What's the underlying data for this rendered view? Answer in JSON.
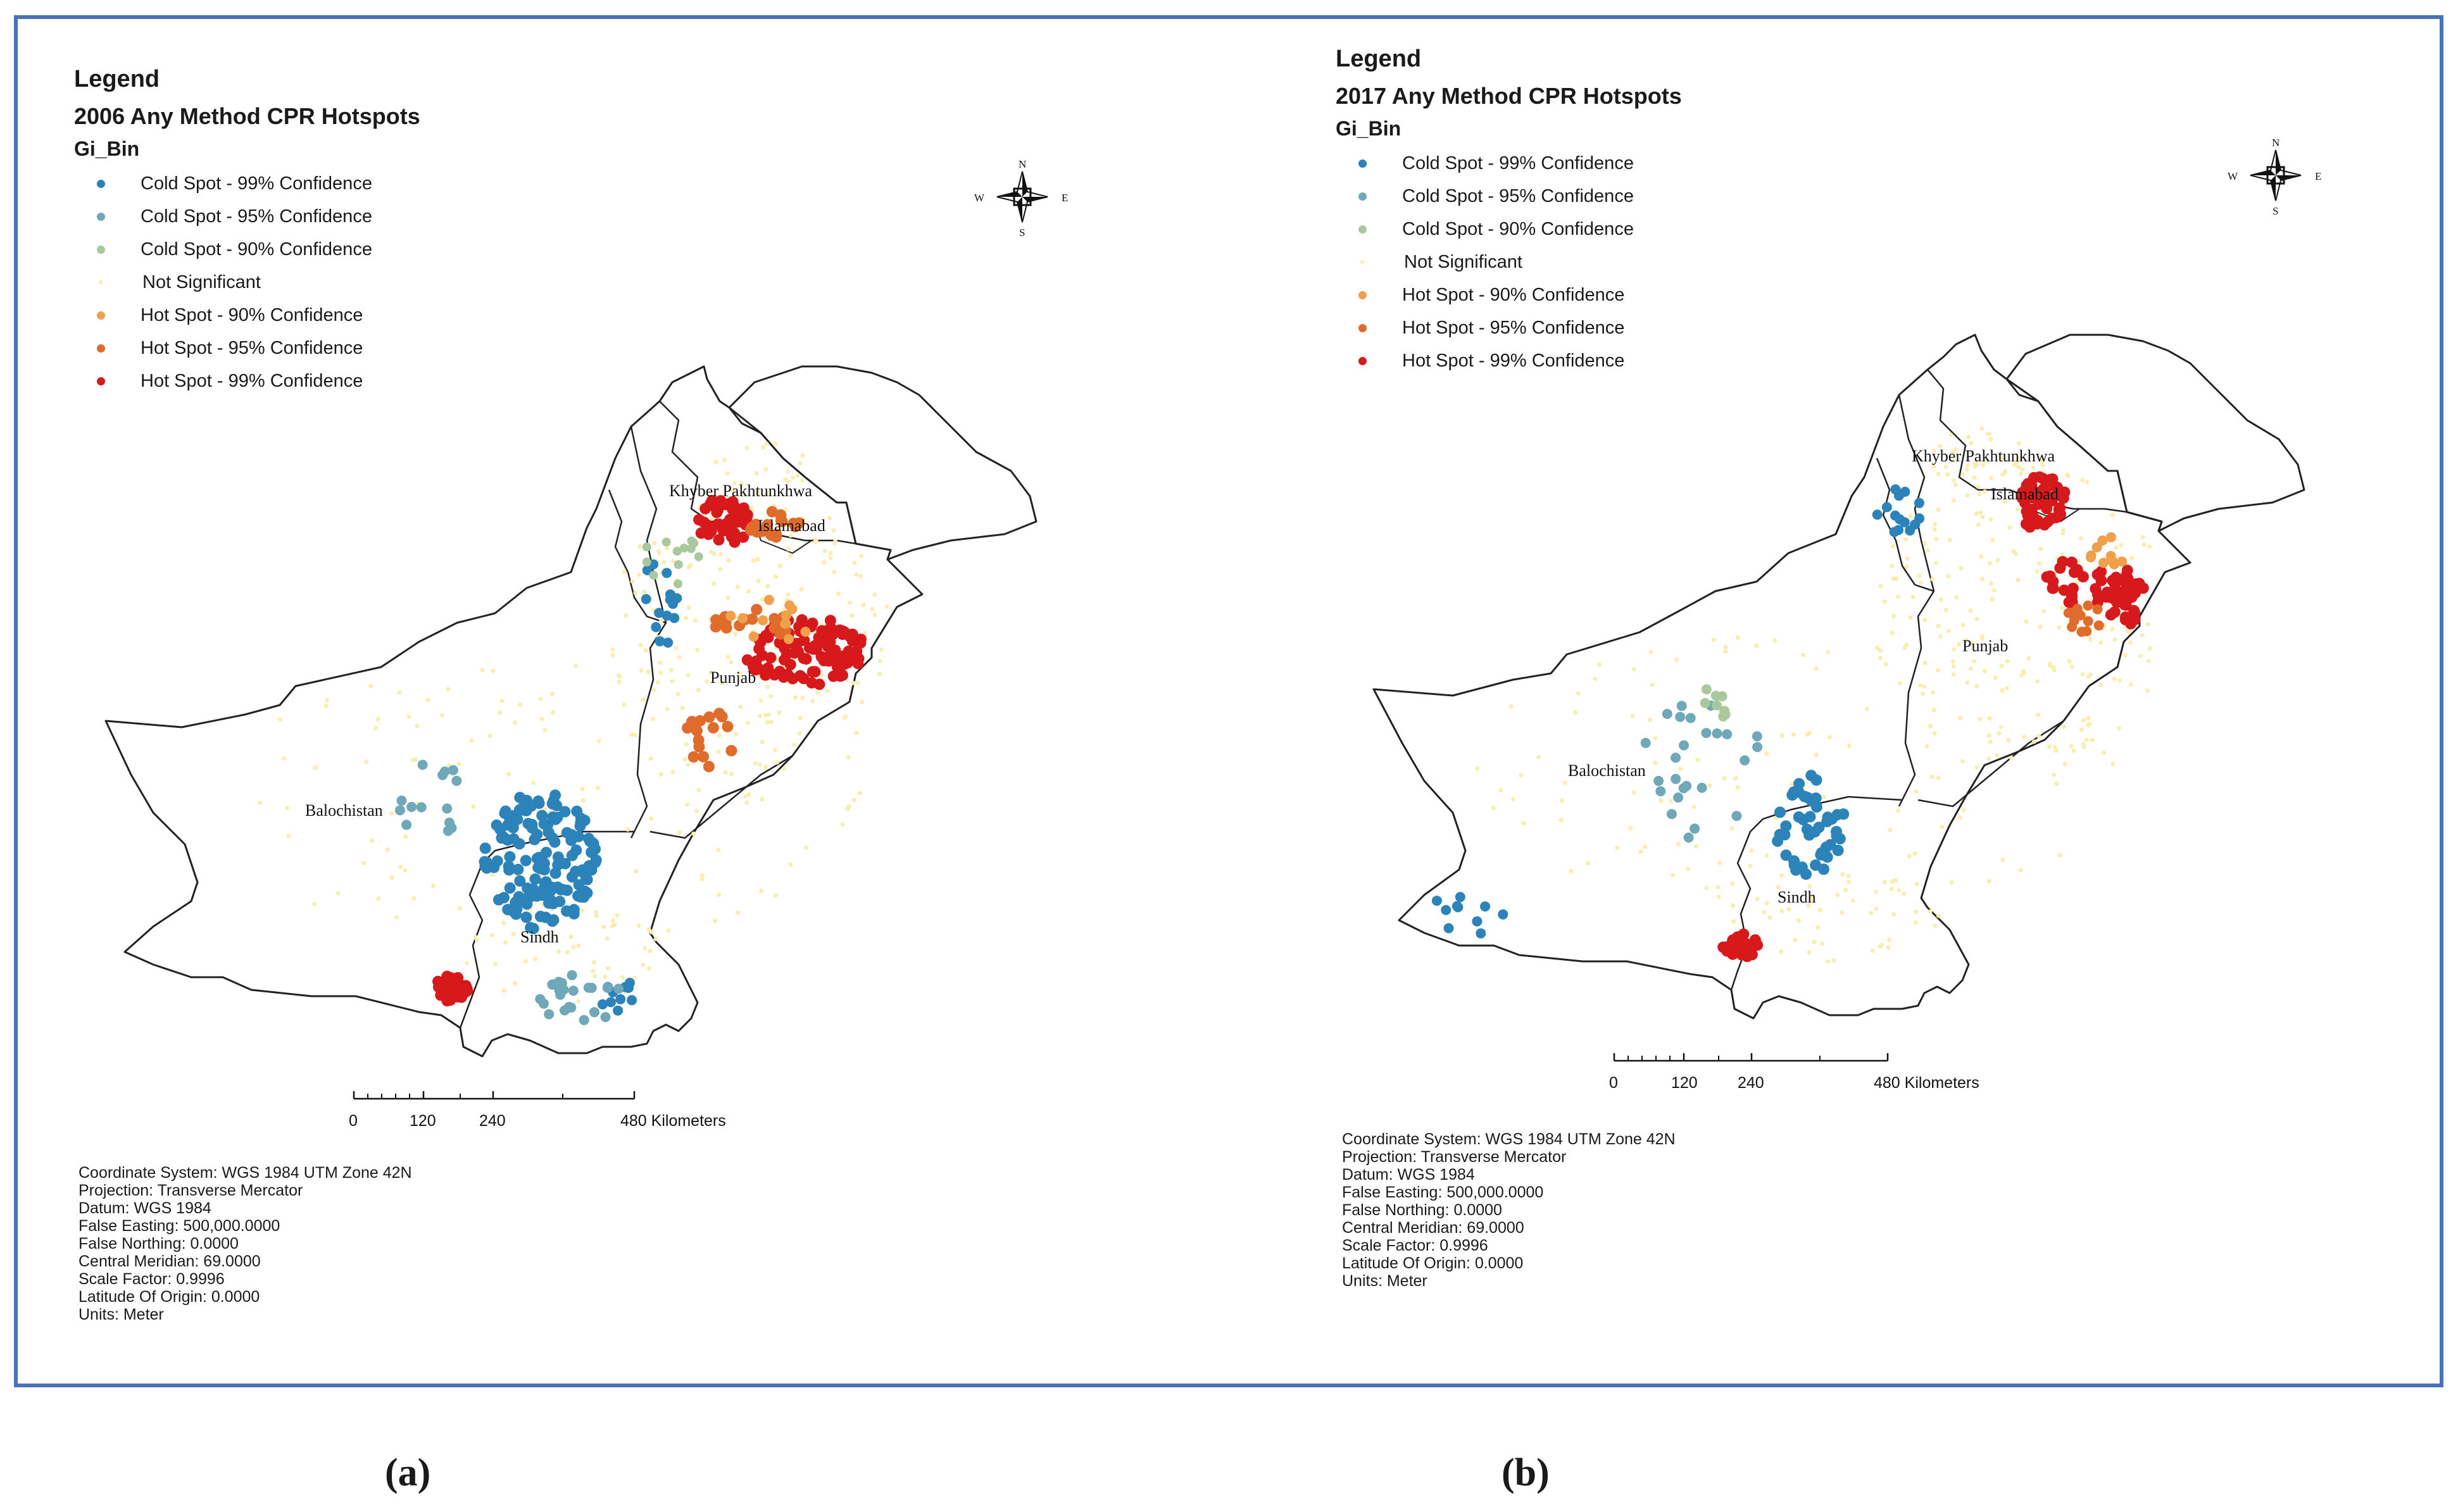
{
  "panels": [
    {
      "legend": {
        "title": "Legend",
        "subtitle": "2006 Any Method CPR Hotspots",
        "field": "Gi_Bin",
        "items": [
          {
            "label": "Cold Spot - 99% Confidence",
            "color": "#2b83ba"
          },
          {
            "label": "Cold Spot - 95% Confidence",
            "color": "#6fa8b8"
          },
          {
            "label": "Cold Spot - 90% Confidence",
            "color": "#a9c99c"
          },
          {
            "label": "Not Significant",
            "color": "#f7eeb0"
          },
          {
            "label": "Hot Spot - 90% Confidence",
            "color": "#f0a04b"
          },
          {
            "label": "Hot Spot - 95% Confidence",
            "color": "#e06c2c"
          },
          {
            "label": "Hot Spot - 99% Confidence",
            "color": "#d7191c"
          }
        ]
      },
      "compass": {
        "n": "N",
        "s": "S",
        "e": "E",
        "w": "W"
      },
      "region_labels": {
        "kp": "Khyber Pakhtunkhwa",
        "islamabad": "Islamabad",
        "punjab": "Punjab",
        "balochistan": "Balochistan",
        "sindh": "Sindh"
      },
      "scale_bar": {
        "ticks": [
          "0",
          "120",
          "240",
          "480 Kilometers"
        ]
      },
      "coordinate_info": [
        "Coordinate System: WGS 1984 UTM Zone 42N",
        "Projection: Transverse Mercator",
        "Datum: WGS 1984",
        "False Easting: 500,000.0000",
        "False Northing: 0.0000",
        "Central Meridian: 69.0000",
        "Scale Factor: 0.9996",
        "Latitude Of Origin: 0.0000",
        "Units: Meter"
      ],
      "caption": "(a)"
    },
    {
      "legend": {
        "title": "Legend",
        "subtitle": "2017 Any Method CPR Hotspots",
        "field": "Gi_Bin",
        "items": [
          {
            "label": "Cold Spot - 99% Confidence",
            "color": "#2b83ba"
          },
          {
            "label": "Cold Spot - 95% Confidence",
            "color": "#6fa8b8"
          },
          {
            "label": "Cold Spot - 90% Confidence",
            "color": "#a9c99c"
          },
          {
            "label": "Not Significant",
            "color": "#f7eeb0"
          },
          {
            "label": "Hot Spot - 90% Confidence",
            "color": "#f0a04b"
          },
          {
            "label": "Hot Spot - 95% Confidence",
            "color": "#e06c2c"
          },
          {
            "label": "Hot Spot - 99% Confidence",
            "color": "#d7191c"
          }
        ]
      },
      "compass": {
        "n": "N",
        "s": "S",
        "e": "E",
        "w": "W"
      },
      "region_labels": {
        "kp": "Khyber Pakhtunkhwa",
        "islamabad": "Islamabad",
        "punjab": "Punjab",
        "balochistan": "Balochistan",
        "sindh": "Sindh"
      },
      "scale_bar": {
        "ticks": [
          "0",
          "120",
          "240",
          "480 Kilometers"
        ]
      },
      "coordinate_info": [
        "Coordinate System: WGS 1984 UTM Zone 42N",
        "Projection: Transverse Mercator",
        "Datum: WGS 1984",
        "False Easting: 500,000.0000",
        "False Northing: 0.0000",
        "Central Meridian: 69.0000",
        "Scale Factor: 0.9996",
        "Latitude Of Origin: 0.0000",
        "Units: Meter"
      ],
      "caption": "(b)"
    }
  ]
}
